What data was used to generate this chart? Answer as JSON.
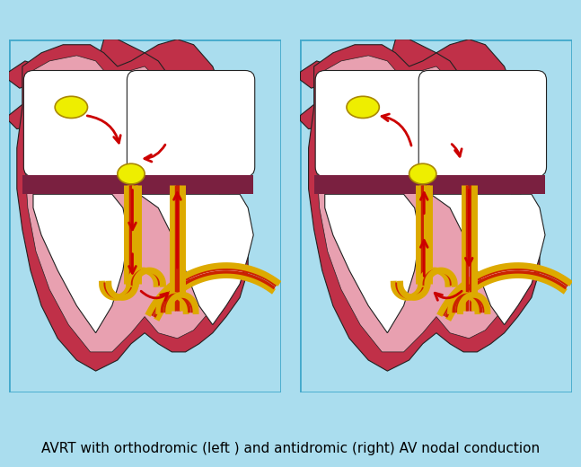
{
  "bg_color": "#aaddee",
  "caption": "AVRT with orthodromic (left ) and antidromic (right) AV nodal conduction",
  "caption_fontsize": 11,
  "heart_dark": "#c03048",
  "heart_mid": "#e8a0b0",
  "heart_light": "#f0c8d0",
  "chamber_white": "#ffffff",
  "sa_color": "#eeee00",
  "av_color": "#eeee00",
  "bundle_yellow": "#ddaa00",
  "bundle_red": "#cc2200",
  "arrow_color": "#cc0000",
  "septum_color": "#7a2040",
  "panel_border": "#44aacc",
  "outline_color": "#222222"
}
